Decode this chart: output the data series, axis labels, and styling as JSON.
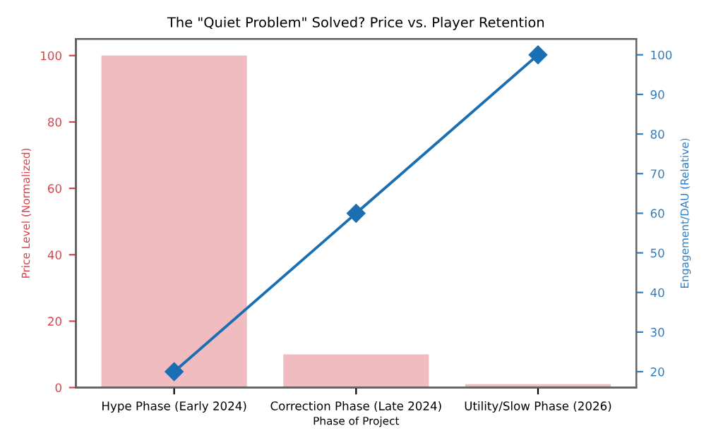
{
  "chart_data": {
    "type": "bar",
    "title": "The \"Quiet Problem\" Solved? Price vs. Player Retention",
    "xlabel": "Phase of Project",
    "ylabel": "Price Level (Normalized)",
    "y2label": "Engagement/DAU (Relative)",
    "categories": [
      "Hype Phase (Early 2024)",
      "Correction Phase (Late 2024)",
      "Utility/Slow Phase (2026)"
    ],
    "series": [
      {
        "color": "#f0bcbf",
        "values": [
          100,
          10,
          1
        ]
      },
      {
        "type": "line",
        "axis": "y2",
        "color": "#1a6fb3",
        "values": [
          20,
          60,
          100
        ],
        "marker": "diamond"
      }
    ],
    "ylim": [
      0,
      105
    ],
    "yticks": [
      0,
      20,
      40,
      60,
      80,
      100
    ],
    "y2lim": [
      16,
      104
    ],
    "y2ticks": [
      20,
      30,
      40,
      50,
      60,
      70,
      80,
      90,
      100
    ],
    "grid": false
  }
}
